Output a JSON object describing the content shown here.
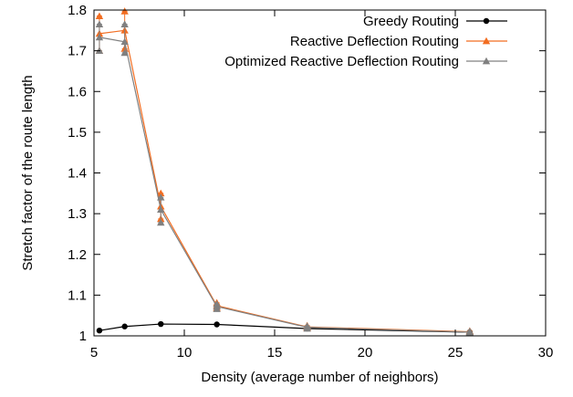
{
  "chart_data": {
    "type": "line",
    "title": "",
    "xlabel": "Density (average number of neighbors)",
    "ylabel": "Stretch factor of the route length",
    "xlim": [
      5,
      30
    ],
    "ylim": [
      1,
      1.8
    ],
    "xticks": [
      5,
      10,
      15,
      20,
      25,
      30
    ],
    "yticks": [
      1,
      1.1,
      1.2,
      1.3,
      1.4,
      1.5,
      1.6,
      1.7,
      1.8
    ],
    "xtick_labels": [
      "5",
      "10",
      "15",
      "20",
      "25",
      "30"
    ],
    "ytick_labels": [
      "1",
      "1.1",
      "1.2",
      "1.3",
      "1.4",
      "1.5",
      "1.6",
      "1.7",
      "1.8"
    ],
    "grid": false,
    "legend_position": "top-right",
    "series": [
      {
        "name": "Greedy Routing",
        "color": "#000000",
        "marker": "circle",
        "x": [
          5.3,
          6.7,
          8.7,
          11.8,
          16.8,
          25.8
        ],
        "y": [
          1.013,
          1.023,
          1.029,
          1.028,
          1.018,
          1.009
        ],
        "err_low": [
          1.013,
          1.023,
          1.029,
          1.028,
          1.018,
          1.009
        ],
        "err_high": [
          1.013,
          1.023,
          1.029,
          1.028,
          1.018,
          1.009
        ]
      },
      {
        "name": "Reactive Deflection Routing",
        "color": "#f26d21",
        "marker": "triangle",
        "x": [
          5.3,
          6.7,
          8.7,
          11.8,
          16.8,
          25.8
        ],
        "y": [
          1.742,
          1.75,
          1.318,
          1.074,
          1.022,
          1.01
        ],
        "err_low": [
          1.7,
          1.705,
          1.287,
          1.068,
          1.019,
          1.008
        ],
        "err_high": [
          1.785,
          1.797,
          1.35,
          1.081,
          1.025,
          1.012
        ]
      },
      {
        "name": "Optimized Reactive Deflection Routing",
        "color": "#808080",
        "marker": "triangle",
        "x": [
          5.3,
          6.7,
          8.7,
          11.8,
          16.8,
          25.8
        ],
        "y": [
          1.733,
          1.722,
          1.31,
          1.072,
          1.021,
          1.009
        ],
        "err_low": [
          1.7,
          1.695,
          1.278,
          1.066,
          1.018,
          1.007
        ],
        "err_high": [
          1.765,
          1.765,
          1.34,
          1.078,
          1.024,
          1.011
        ]
      }
    ]
  }
}
